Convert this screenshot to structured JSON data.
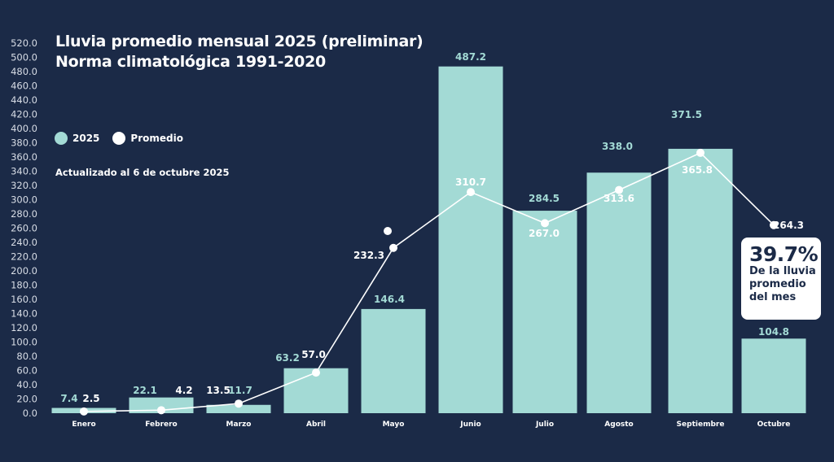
{
  "header": {
    "title_line1": "Lluvia promedio mensual 2025 (preliminar)",
    "title_line2": "Norma climatológica 1991-2020",
    "updated": "Actualizado al 6 de octubre 2025"
  },
  "legend": [
    {
      "label": "2025",
      "color": "#a3dad5"
    },
    {
      "label": "Promedio",
      "color": "#ffffff"
    }
  ],
  "callout": {
    "percent": "39.7%",
    "text_line1": "De la lluvia",
    "text_line2": "promedio",
    "text_line3": "del mes"
  },
  "colors": {
    "background": "#1b2a47",
    "bar": "#a3dad5",
    "line": "#ffffff",
    "axis_text": "#d8dde6"
  },
  "chart_data": {
    "type": "bar",
    "title": "Lluvia promedio mensual 2025 (preliminar) / Norma climatológica 1991-2020",
    "xlabel": "",
    "ylabel": "",
    "ylim": [
      0,
      520
    ],
    "yticks": [
      "0.0",
      "20.0",
      "40.0",
      "60.0",
      "80.0",
      "100.0",
      "120.0",
      "140.0",
      "160.0",
      "180.0",
      "200.0",
      "220.0",
      "240.0",
      "260.0",
      "280.0",
      "300.0",
      "320.0",
      "340.0",
      "360.0",
      "380.0",
      "400.0",
      "420.0",
      "440.0",
      "460.0",
      "480.0",
      "500.0",
      "520.0"
    ],
    "grid": false,
    "legend_position": "top-left",
    "categories": [
      "Enero",
      "Febrero",
      "Marzo",
      "Abril",
      "Mayo",
      "Junio",
      "Julio",
      "Agosto",
      "Septiembre",
      "Octubre"
    ],
    "series": [
      {
        "name": "2025",
        "type": "bar",
        "values": [
          7.4,
          22.1,
          11.7,
          63.2,
          146.4,
          487.2,
          284.5,
          338.0,
          371.5,
          104.8
        ],
        "labels": [
          "7.4",
          "22.1",
          "11.7",
          "63.2",
          "146.4",
          "487.2",
          "284.5",
          "338.0",
          "371.5",
          "104.8"
        ]
      },
      {
        "name": "Promedio",
        "type": "line",
        "values": [
          2.5,
          4.2,
          13.5,
          57.0,
          232.3,
          310.7,
          267.0,
          313.6,
          365.8,
          264.3
        ],
        "labels": [
          "2.5",
          "4.2",
          "13.5",
          "57.0",
          "232.3",
          "310.7",
          "267.0",
          "313.6",
          "365.8",
          "264.3"
        ]
      }
    ]
  }
}
